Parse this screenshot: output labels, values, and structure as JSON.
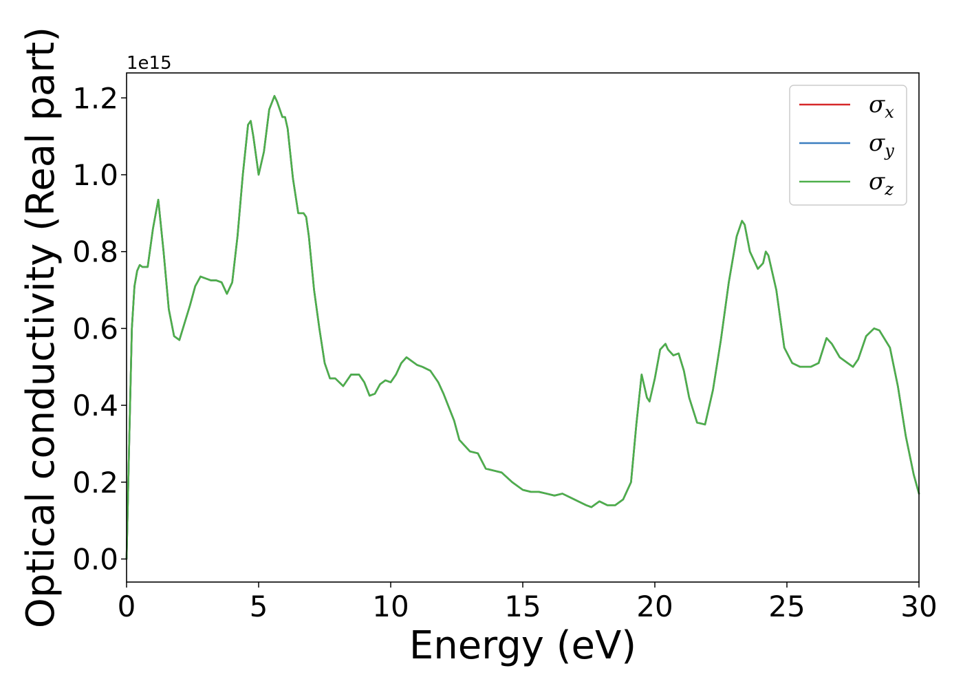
{
  "chart_data": {
    "type": "line",
    "xlabel": "Energy (eV)",
    "ylabel": "Optical conductivity (Real part)",
    "y_offset_label": "1e15",
    "xlim": [
      0,
      30
    ],
    "ylim": [
      -0.06,
      1.265
    ],
    "x_ticks": [
      0,
      5,
      10,
      15,
      20,
      25,
      30
    ],
    "x_tick_labels": [
      "0",
      "5",
      "10",
      "15",
      "20",
      "25",
      "30"
    ],
    "y_ticks": [
      0.0,
      0.2,
      0.4,
      0.6,
      0.8,
      1.0,
      1.2
    ],
    "y_tick_labels": [
      "0.0",
      "0.2",
      "0.4",
      "0.6",
      "0.8",
      "1.0",
      "1.2"
    ],
    "grid": false,
    "legend_position": "top-right",
    "legend": [
      {
        "symbol": "σ",
        "sub": "x",
        "color": "#d62728"
      },
      {
        "symbol": "σ",
        "sub": "y",
        "color": "#3a7dbf"
      },
      {
        "symbol": "σ",
        "sub": "z",
        "color": "#4daf4a"
      }
    ],
    "x": [
      0,
      0.1,
      0.2,
      0.3,
      0.4,
      0.5,
      0.6,
      0.8,
      1.0,
      1.2,
      1.4,
      1.6,
      1.8,
      2.0,
      2.2,
      2.4,
      2.6,
      2.8,
      3.0,
      3.2,
      3.4,
      3.6,
      3.8,
      4.0,
      4.2,
      4.4,
      4.6,
      4.7,
      4.8,
      5.0,
      5.2,
      5.4,
      5.6,
      5.7,
      5.9,
      6.0,
      6.1,
      6.3,
      6.5,
      6.7,
      6.8,
      6.9,
      7.1,
      7.3,
      7.5,
      7.7,
      7.9,
      8.2,
      8.5,
      8.8,
      9.0,
      9.2,
      9.4,
      9.6,
      9.8,
      10.0,
      10.2,
      10.4,
      10.6,
      10.8,
      11.0,
      11.2,
      11.5,
      11.8,
      12.0,
      12.2,
      12.4,
      12.6,
      12.8,
      13.0,
      13.3,
      13.6,
      13.9,
      14.2,
      14.6,
      15.0,
      15.3,
      15.6,
      15.9,
      16.2,
      16.5,
      16.8,
      17.1,
      17.4,
      17.6,
      17.9,
      18.2,
      18.5,
      18.8,
      19.1,
      19.3,
      19.5,
      19.7,
      19.8,
      20.0,
      20.2,
      20.4,
      20.5,
      20.7,
      20.9,
      21.1,
      21.3,
      21.6,
      21.9,
      22.2,
      22.5,
      22.8,
      23.1,
      23.3,
      23.4,
      23.6,
      23.9,
      24.1,
      24.2,
      24.3,
      24.6,
      24.9,
      25.2,
      25.5,
      25.9,
      26.2,
      26.5,
      26.7,
      27.0,
      27.3,
      27.5,
      27.7,
      28.0,
      28.3,
      28.5,
      28.9,
      29.2,
      29.5,
      29.8,
      30.0
    ],
    "series": [
      {
        "color": "#d62728",
        "values": [
          0.0,
          0.3,
          0.6,
          0.71,
          0.75,
          0.765,
          0.76,
          0.76,
          0.86,
          0.935,
          0.8,
          0.65,
          0.58,
          0.57,
          0.615,
          0.66,
          0.71,
          0.735,
          0.73,
          0.725,
          0.725,
          0.72,
          0.69,
          0.72,
          0.84,
          1.0,
          1.13,
          1.14,
          1.1,
          1.0,
          1.06,
          1.17,
          1.205,
          1.19,
          1.15,
          1.15,
          1.12,
          0.99,
          0.9,
          0.9,
          0.89,
          0.84,
          0.7,
          0.6,
          0.51,
          0.47,
          0.47,
          0.45,
          0.48,
          0.48,
          0.46,
          0.425,
          0.43,
          0.455,
          0.465,
          0.46,
          0.48,
          0.51,
          0.525,
          0.515,
          0.505,
          0.5,
          0.49,
          0.46,
          0.43,
          0.395,
          0.36,
          0.31,
          0.295,
          0.28,
          0.275,
          0.235,
          0.23,
          0.225,
          0.2,
          0.18,
          0.175,
          0.175,
          0.17,
          0.165,
          0.17,
          0.16,
          0.15,
          0.14,
          0.135,
          0.15,
          0.14,
          0.14,
          0.155,
          0.2,
          0.35,
          0.48,
          0.42,
          0.41,
          0.47,
          0.545,
          0.56,
          0.545,
          0.53,
          0.535,
          0.49,
          0.42,
          0.355,
          0.35,
          0.44,
          0.57,
          0.72,
          0.84,
          0.88,
          0.87,
          0.8,
          0.755,
          0.77,
          0.8,
          0.79,
          0.7,
          0.55,
          0.51,
          0.5,
          0.5,
          0.51,
          0.575,
          0.56,
          0.525,
          0.51,
          0.5,
          0.52,
          0.58,
          0.6,
          0.595,
          0.55,
          0.45,
          0.32,
          0.22,
          0.17
        ]
      },
      {
        "color": "#3a7dbf",
        "values": [
          0.0,
          0.3,
          0.6,
          0.71,
          0.75,
          0.765,
          0.76,
          0.76,
          0.86,
          0.935,
          0.8,
          0.65,
          0.58,
          0.57,
          0.615,
          0.66,
          0.71,
          0.735,
          0.73,
          0.725,
          0.725,
          0.72,
          0.69,
          0.72,
          0.84,
          1.0,
          1.13,
          1.14,
          1.1,
          1.0,
          1.06,
          1.17,
          1.205,
          1.19,
          1.15,
          1.15,
          1.12,
          0.99,
          0.9,
          0.9,
          0.89,
          0.84,
          0.7,
          0.6,
          0.51,
          0.47,
          0.47,
          0.45,
          0.48,
          0.48,
          0.46,
          0.425,
          0.43,
          0.455,
          0.465,
          0.46,
          0.48,
          0.51,
          0.525,
          0.515,
          0.505,
          0.5,
          0.49,
          0.46,
          0.43,
          0.395,
          0.36,
          0.31,
          0.295,
          0.28,
          0.275,
          0.235,
          0.23,
          0.225,
          0.2,
          0.18,
          0.175,
          0.175,
          0.17,
          0.165,
          0.17,
          0.16,
          0.15,
          0.14,
          0.135,
          0.15,
          0.14,
          0.14,
          0.155,
          0.2,
          0.35,
          0.48,
          0.42,
          0.41,
          0.47,
          0.545,
          0.56,
          0.545,
          0.53,
          0.535,
          0.49,
          0.42,
          0.355,
          0.35,
          0.44,
          0.57,
          0.72,
          0.84,
          0.88,
          0.87,
          0.8,
          0.755,
          0.77,
          0.8,
          0.79,
          0.7,
          0.55,
          0.51,
          0.5,
          0.5,
          0.51,
          0.575,
          0.56,
          0.525,
          0.51,
          0.5,
          0.52,
          0.58,
          0.6,
          0.595,
          0.55,
          0.45,
          0.32,
          0.22,
          0.17
        ]
      },
      {
        "color": "#4daf4a",
        "values": [
          0.0,
          0.3,
          0.6,
          0.71,
          0.75,
          0.765,
          0.76,
          0.76,
          0.86,
          0.935,
          0.8,
          0.65,
          0.58,
          0.57,
          0.615,
          0.66,
          0.71,
          0.735,
          0.73,
          0.725,
          0.725,
          0.72,
          0.69,
          0.72,
          0.84,
          1.0,
          1.13,
          1.14,
          1.1,
          1.0,
          1.06,
          1.17,
          1.205,
          1.19,
          1.15,
          1.15,
          1.12,
          0.99,
          0.9,
          0.9,
          0.89,
          0.84,
          0.7,
          0.6,
          0.51,
          0.47,
          0.47,
          0.45,
          0.48,
          0.48,
          0.46,
          0.425,
          0.43,
          0.455,
          0.465,
          0.46,
          0.48,
          0.51,
          0.525,
          0.515,
          0.505,
          0.5,
          0.49,
          0.46,
          0.43,
          0.395,
          0.36,
          0.31,
          0.295,
          0.28,
          0.275,
          0.235,
          0.23,
          0.225,
          0.2,
          0.18,
          0.175,
          0.175,
          0.17,
          0.165,
          0.17,
          0.16,
          0.15,
          0.14,
          0.135,
          0.15,
          0.14,
          0.14,
          0.155,
          0.2,
          0.35,
          0.48,
          0.42,
          0.41,
          0.47,
          0.545,
          0.56,
          0.545,
          0.53,
          0.535,
          0.49,
          0.42,
          0.355,
          0.35,
          0.44,
          0.57,
          0.72,
          0.84,
          0.88,
          0.87,
          0.8,
          0.755,
          0.77,
          0.8,
          0.79,
          0.7,
          0.55,
          0.51,
          0.5,
          0.5,
          0.51,
          0.575,
          0.56,
          0.525,
          0.51,
          0.5,
          0.52,
          0.58,
          0.6,
          0.595,
          0.55,
          0.45,
          0.32,
          0.22,
          0.17
        ]
      }
    ]
  }
}
